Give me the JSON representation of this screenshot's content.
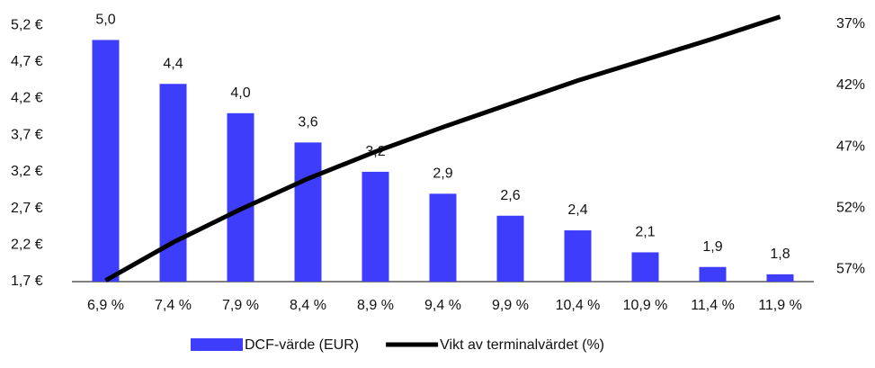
{
  "chart_data": {
    "type": "bar_line",
    "categories": [
      "6,9 %",
      "7,4 %",
      "7,9 %",
      "8,4 %",
      "8,9 %",
      "9,4 %",
      "9,9 %",
      "10,4 %",
      "10,9 %",
      "11,4 %",
      "11,9 %"
    ],
    "series": [
      {
        "name": "DCF-värde (EUR)",
        "type": "bar",
        "color": "#3d3dfb",
        "values": [
          5.0,
          4.4,
          4.0,
          3.6,
          3.2,
          2.9,
          2.6,
          2.4,
          2.1,
          1.9,
          1.8
        ],
        "value_labels": [
          "5,0",
          "4,4",
          "4,0",
          "3,6",
          "3,2",
          "2,9",
          "2,6",
          "2,4",
          "2,1",
          "1,9",
          "1,8"
        ]
      },
      {
        "name": "Vikt av terminalvärdet (%)",
        "type": "line",
        "color": "#000000",
        "axis": "y2",
        "values": [
          57.9,
          54.8,
          52.1,
          49.6,
          47.4,
          45.4,
          43.5,
          41.6,
          39.9,
          38.2,
          36.4
        ]
      }
    ],
    "ylim": [
      1.7,
      5.3
    ],
    "yticks": [
      {
        "value": 1.7,
        "label": "1,7 €"
      },
      {
        "value": 2.2,
        "label": "2,2 €"
      },
      {
        "value": 2.7,
        "label": "2,7 €"
      },
      {
        "value": 3.2,
        "label": "3,2 €"
      },
      {
        "value": 3.7,
        "label": "3,7 €"
      },
      {
        "value": 4.2,
        "label": "4,2 €"
      },
      {
        "value": 4.7,
        "label": "4,7 €"
      },
      {
        "value": 5.2,
        "label": "5,2 €"
      }
    ],
    "y2lim": [
      58,
      36.5
    ],
    "y2ticks": [
      {
        "value": 37,
        "label": "37%"
      },
      {
        "value": 42,
        "label": "42%"
      },
      {
        "value": 47,
        "label": "47%"
      },
      {
        "value": 52,
        "label": "52%"
      },
      {
        "value": 57,
        "label": "57%"
      }
    ],
    "legend": "bottom"
  }
}
